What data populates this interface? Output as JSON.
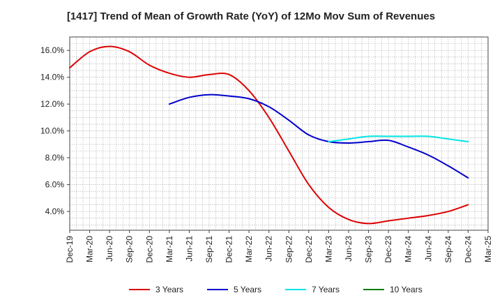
{
  "chart_data": {
    "type": "line",
    "title": "[1417]  Trend of Mean of Growth Rate (YoY) of 12Mo Mov Sum of Revenues",
    "xlabel": "",
    "ylabel": "",
    "x": [
      "Dec-19",
      "Mar-20",
      "Jun-20",
      "Sep-20",
      "Dec-20",
      "Mar-21",
      "Jun-21",
      "Sep-21",
      "Dec-21",
      "Mar-22",
      "Jun-22",
      "Sep-22",
      "Dec-22",
      "Mar-23",
      "Jun-23",
      "Sep-23",
      "Dec-23",
      "Mar-24",
      "Jun-24",
      "Sep-24",
      "Dec-24",
      "Mar-25"
    ],
    "x_tick_labels": [
      "Dec-19",
      "Mar-20",
      "Jun-20",
      "Sep-20",
      "Dec-20",
      "Mar-21",
      "Jun-21",
      "Sep-21",
      "Dec-21",
      "Mar-22",
      "Jun-22",
      "Sep-22",
      "Dec-22",
      "Mar-23",
      "Jun-23",
      "Sep-23",
      "Dec-23",
      "Mar-24",
      "Jun-24",
      "Sep-24",
      "Dec-24",
      "Mar-25"
    ],
    "y_ticks": [
      4.0,
      6.0,
      8.0,
      10.0,
      12.0,
      14.0,
      16.0
    ],
    "y_tick_labels": [
      "4.0%",
      "6.0%",
      "8.0%",
      "10.0%",
      "12.0%",
      "14.0%",
      "16.0%"
    ],
    "ylim": [
      2.6,
      17.0
    ],
    "grid": true,
    "legend_position": "bottom",
    "series": [
      {
        "name": "3 Years",
        "color": "#dd0000",
        "values": [
          14.7,
          15.9,
          16.3,
          15.9,
          14.9,
          14.3,
          14.0,
          14.2,
          14.2,
          13.0,
          11.0,
          8.5,
          6.0,
          4.3,
          3.4,
          3.1,
          3.3,
          3.5,
          3.7,
          4.0,
          4.5,
          null
        ]
      },
      {
        "name": "5 Years",
        "color": "#0000cc",
        "values": [
          null,
          null,
          null,
          null,
          null,
          12.0,
          12.5,
          12.7,
          12.6,
          12.4,
          11.8,
          10.8,
          9.7,
          9.2,
          9.1,
          9.2,
          9.3,
          8.8,
          8.2,
          7.4,
          6.5,
          null
        ]
      },
      {
        "name": "7 Years",
        "color": "#00e5e5",
        "values": [
          null,
          null,
          null,
          null,
          null,
          null,
          null,
          null,
          null,
          null,
          null,
          null,
          null,
          9.2,
          9.4,
          9.6,
          9.6,
          9.6,
          9.6,
          9.4,
          9.2,
          null
        ]
      },
      {
        "name": "10 Years",
        "color": "#008000",
        "values": [
          null,
          null,
          null,
          null,
          null,
          null,
          null,
          null,
          null,
          null,
          null,
          null,
          null,
          null,
          null,
          null,
          null,
          null,
          null,
          null,
          null,
          null
        ]
      }
    ]
  }
}
